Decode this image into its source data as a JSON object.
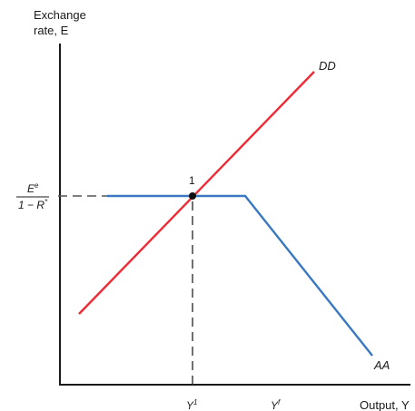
{
  "yaxis": {
    "title_line1": "Exchange",
    "title_line2": "rate, E"
  },
  "xaxis": {
    "title": "Output, Y"
  },
  "curves": {
    "dd": {
      "label": "DD",
      "color": "#ee2a35"
    },
    "aa": {
      "label": "AA",
      "color": "#3a78c2"
    }
  },
  "equilibrium": {
    "label": "1"
  },
  "rate_level": {
    "numerator_base": "E",
    "numerator_sup": "e",
    "denominator": "1 − R",
    "denominator_sup": "*"
  },
  "output_ticks": {
    "y1_base": "Y",
    "y1_sup": "1",
    "yf_base": "Y",
    "yf_sup": "f"
  }
}
